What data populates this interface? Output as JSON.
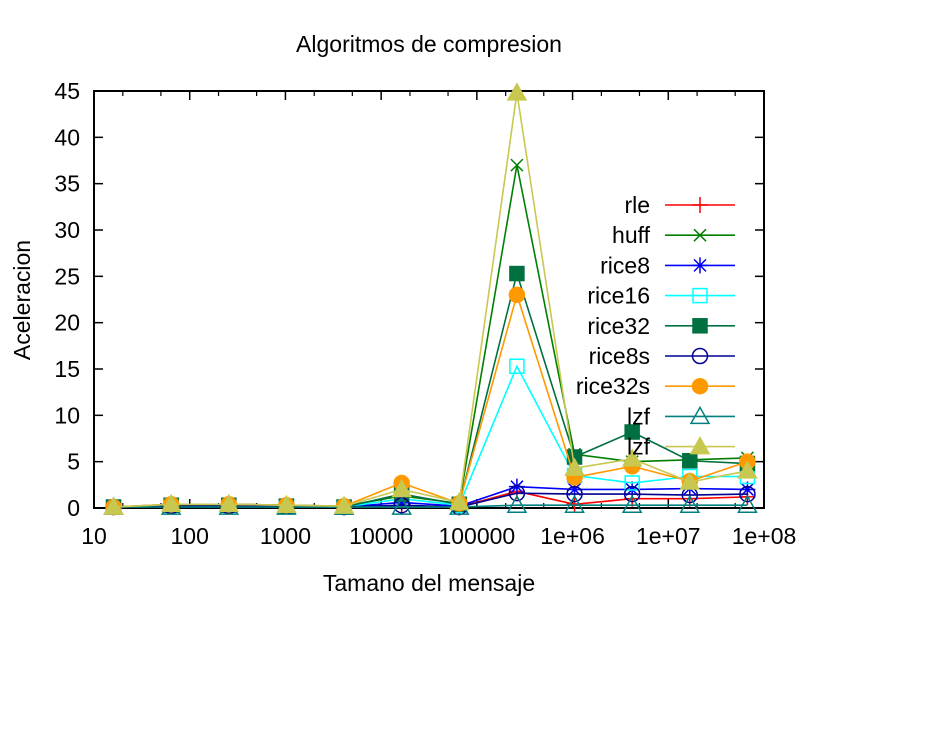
{
  "chart_data": {
    "type": "line",
    "title": "Algoritmos de compresion",
    "xlabel": "Tamano del mensaje",
    "ylabel": "Aceleracion",
    "x_scale": "log",
    "xlim": [
      10,
      100000000
    ],
    "ylim": [
      0,
      45
    ],
    "x_ticks": [
      10,
      100,
      1000,
      10000,
      100000,
      1000000,
      10000000,
      100000000
    ],
    "x_tick_labels": [
      "10",
      "100",
      "1000",
      "10000",
      "100000",
      "1e+06",
      "1e+07",
      "1e+08"
    ],
    "y_ticks": [
      0,
      5,
      10,
      15,
      20,
      25,
      30,
      35,
      40,
      45
    ],
    "y_tick_labels": [
      "0",
      "5",
      "10",
      "15",
      "20",
      "25",
      "30",
      "35",
      "40",
      "45"
    ],
    "grid": false,
    "legend_position": "right",
    "x": [
      16,
      64,
      256,
      1024,
      4096,
      16384,
      65536,
      262144,
      1048576,
      4194304,
      16777216,
      67108864
    ],
    "series": [
      {
        "name": "rle",
        "color": "#ff0000",
        "marker": "plus",
        "filled": false,
        "values": [
          0.1,
          0.2,
          0.4,
          0.3,
          0.1,
          0.2,
          0.1,
          1.8,
          0.4,
          1.0,
          1.0,
          1.2
        ]
      },
      {
        "name": "huff",
        "color": "#008000",
        "marker": "x",
        "filled": false,
        "values": [
          0.1,
          0.4,
          0.4,
          0.3,
          0.2,
          1.3,
          0.5,
          37.0,
          5.8,
          5.0,
          5.2,
          5.4
        ]
      },
      {
        "name": "rice8",
        "color": "#0000ff",
        "marker": "star",
        "filled": false,
        "values": [
          0.1,
          0.2,
          0.2,
          0.2,
          0.1,
          0.6,
          0.2,
          2.3,
          2.0,
          2.0,
          2.1,
          2.0
        ]
      },
      {
        "name": "rice16",
        "color": "#00ffff",
        "marker": "square",
        "filled": false,
        "values": [
          0.1,
          0.3,
          0.3,
          0.2,
          0.1,
          1.0,
          0.3,
          15.3,
          3.5,
          2.7,
          3.4,
          3.4
        ]
      },
      {
        "name": "rice32",
        "color": "#007040",
        "marker": "square",
        "filled": true,
        "values": [
          0.1,
          0.3,
          0.3,
          0.2,
          0.1,
          1.5,
          0.4,
          25.3,
          5.5,
          8.2,
          5.1,
          4.8
        ]
      },
      {
        "name": "rice8s",
        "color": "#000090",
        "marker": "circle",
        "filled": false,
        "values": [
          0.1,
          0.2,
          0.2,
          0.2,
          0.1,
          0.3,
          0.1,
          1.6,
          1.5,
          1.5,
          1.4,
          1.5
        ]
      },
      {
        "name": "rice32s",
        "color": "#ff9900",
        "marker": "circle",
        "filled": true,
        "values": [
          0.1,
          0.4,
          0.4,
          0.3,
          0.2,
          2.7,
          0.5,
          23.0,
          3.3,
          4.5,
          2.9,
          5.0
        ]
      },
      {
        "name": "lzf",
        "color": "#008080",
        "marker": "triangle",
        "filled": false,
        "values": [
          0.1,
          0.1,
          0.1,
          0.1,
          0.1,
          0.1,
          0.1,
          0.3,
          0.3,
          0.3,
          0.3,
          0.3
        ]
      },
      {
        "name": "lzf",
        "color": "#c8c850",
        "marker": "triangle",
        "filled": true,
        "values": [
          0.1,
          0.4,
          0.4,
          0.3,
          0.2,
          2.0,
          0.6,
          44.8,
          4.3,
          5.3,
          2.8,
          4.0
        ]
      }
    ]
  }
}
